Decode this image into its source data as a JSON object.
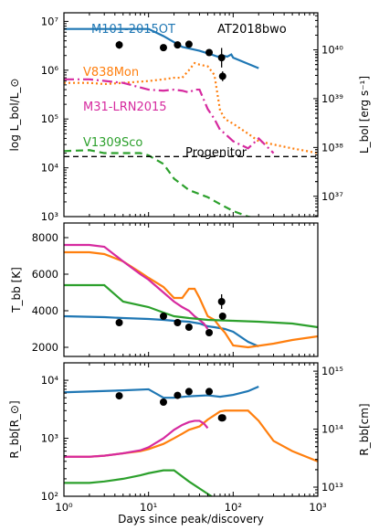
{
  "chart_data": [
    {
      "type": "line",
      "panel": "luminosity",
      "ylabel": "log L_bol/L_⊙",
      "ylabel_right": "L_bol [erg s⁻¹]",
      "xscale": "log",
      "yscale": "log",
      "xlim": [
        1,
        1000
      ],
      "ylim": [
        1000,
        15000000
      ],
      "yticks": [
        {
          "value": 1000,
          "label": "10³"
        },
        {
          "value": 10000,
          "label": "10⁴"
        },
        {
          "value": 100000,
          "label": "10⁵"
        },
        {
          "value": 1000000,
          "label": "10⁶"
        },
        {
          "value": 10000000,
          "label": "10⁷"
        }
      ],
      "yticks_right": [
        {
          "value": 2610,
          "label": "10³⁷"
        },
        {
          "value": 26100,
          "label": "10³⁸"
        },
        {
          "value": 261000,
          "label": "10³⁹"
        },
        {
          "value": 2610000,
          "label": "10⁴⁰"
        }
      ],
      "series": [
        {
          "name": "M101-2015OT",
          "color": "#1f77b4",
          "style": "solid",
          "x": [
            1,
            6,
            10,
            15,
            25,
            40,
            55,
            65,
            75,
            85,
            95,
            100,
            200
          ],
          "y": [
            7000000,
            7000000,
            7000000,
            5000000,
            3000000,
            2500000,
            2100000,
            1900000,
            2000000,
            1900000,
            2100000,
            1800000,
            1100000
          ]
        },
        {
          "name": "V838Mon",
          "color": "#ff7f0e",
          "style": "dotted",
          "x": [
            1,
            2,
            3,
            5,
            10,
            15,
            20,
            25,
            30,
            35,
            40,
            50,
            60,
            70,
            80,
            100,
            150,
            200,
            300,
            500,
            1000
          ],
          "y": [
            550000,
            550000,
            520000,
            550000,
            600000,
            650000,
            700000,
            700000,
            1000000,
            1400000,
            1300000,
            1200000,
            800000,
            150000,
            100000,
            80000,
            50000,
            35000,
            30000,
            25000,
            20000
          ]
        },
        {
          "name": "M31-LRN2015",
          "color": "#d62a9f",
          "style": "dashdot",
          "x": [
            1,
            2,
            5,
            10,
            15,
            20,
            25,
            30,
            35,
            40,
            50,
            60,
            70,
            80,
            100,
            150,
            200,
            300
          ],
          "y": [
            650000,
            650000,
            550000,
            400000,
            380000,
            400000,
            380000,
            350000,
            400000,
            400000,
            160000,
            100000,
            60000,
            50000,
            35000,
            25000,
            40000,
            20000
          ]
        },
        {
          "name": "V1309Sco",
          "color": "#2ca02c",
          "style": "dashed",
          "x": [
            1,
            2,
            3,
            5,
            8,
            10,
            15,
            20,
            30,
            50,
            70,
            100,
            150,
            200,
            300
          ],
          "y": [
            22000,
            23000,
            20000,
            20000,
            20000,
            18000,
            12000,
            6000,
            3500,
            2500,
            1800,
            1300,
            1000,
            900,
            700
          ]
        },
        {
          "name": "AT2018bwo",
          "color": "#000000",
          "style": "points",
          "x": [
            4.5,
            15,
            22,
            30,
            52,
            73,
            75
          ],
          "y": [
            3300000,
            2900000,
            3300000,
            3400000,
            2300000,
            1800000,
            750000
          ],
          "err": [
            0.08,
            0.04,
            0.04,
            0.04,
            0.04,
            0.2,
            0.1
          ]
        },
        {
          "name": "Progenitor",
          "color": "#000000",
          "style": "dashed-black",
          "x": [
            1,
            1000
          ],
          "y": [
            17000,
            17000
          ]
        }
      ],
      "labels": [
        {
          "text": "M101-2015OT",
          "color": "#1f77b4"
        },
        {
          "text": "AT2018bwo",
          "color": "#000000"
        },
        {
          "text": "V838Mon",
          "color": "#ff7f0e"
        },
        {
          "text": "M31-LRN2015",
          "color": "#d62a9f"
        },
        {
          "text": "V1309Sco",
          "color": "#2ca02c"
        },
        {
          "text": "Progenitor",
          "color": "#000000"
        }
      ]
    },
    {
      "type": "line",
      "panel": "temperature",
      "ylabel": "T_bb [K]",
      "xscale": "log",
      "yscale": "linear",
      "xlim": [
        1,
        1000
      ],
      "ylim": [
        1500,
        8800
      ],
      "yticks": [
        {
          "value": 2000,
          "label": "2000"
        },
        {
          "value": 4000,
          "label": "4000"
        },
        {
          "value": 6000,
          "label": "6000"
        },
        {
          "value": 8000,
          "label": "8000"
        }
      ],
      "series": [
        {
          "name": "M101-2015OT",
          "color": "#1f77b4",
          "x": [
            1,
            3,
            5,
            10,
            15,
            20,
            30,
            40,
            50,
            60,
            80,
            100,
            150,
            200
          ],
          "y": [
            3700,
            3650,
            3600,
            3550,
            3500,
            3450,
            3400,
            3300,
            3150,
            3100,
            3000,
            2850,
            2300,
            2050
          ]
        },
        {
          "name": "V838Mon",
          "color": "#ff7f0e",
          "x": [
            1,
            2,
            3,
            5,
            8,
            10,
            15,
            20,
            25,
            30,
            35,
            40,
            50,
            60,
            70,
            80,
            100,
            150,
            300,
            500,
            1000
          ],
          "y": [
            7200,
            7200,
            7100,
            6700,
            6100,
            5800,
            5300,
            4700,
            4700,
            5200,
            5200,
            4700,
            3700,
            3500,
            3100,
            2800,
            2100,
            2000,
            2200,
            2400,
            2600
          ]
        },
        {
          "name": "M31-LRN2015",
          "color": "#d62a9f",
          "x": [
            1,
            2,
            3,
            5,
            8,
            10,
            15,
            20,
            25,
            30,
            35,
            40,
            45,
            50
          ],
          "y": [
            7600,
            7600,
            7500,
            6700,
            6000,
            5700,
            5000,
            4500,
            4200,
            4000,
            3700,
            3500,
            3300,
            3000
          ]
        },
        {
          "name": "V1309Sco",
          "color": "#2ca02c",
          "x": [
            1,
            2,
            3,
            5,
            10,
            15,
            20,
            30,
            50,
            100,
            200,
            500,
            1000
          ],
          "y": [
            5400,
            5400,
            5400,
            4500,
            4200,
            3900,
            3700,
            3600,
            3500,
            3450,
            3400,
            3300,
            3100
          ]
        },
        {
          "name": "AT2018bwo",
          "color": "#000000",
          "x": [
            4.5,
            15,
            22,
            30,
            52,
            73,
            75
          ],
          "y": [
            3350,
            3700,
            3350,
            3100,
            2800,
            4500,
            3700
          ],
          "err": [
            0,
            0,
            0,
            0,
            0,
            400,
            0
          ]
        }
      ]
    },
    {
      "type": "line",
      "panel": "radius",
      "ylabel": "R_bb[R_⊙]",
      "ylabel_right": "R_bb[cm]",
      "xlabel": "Days since peak/discovery",
      "xscale": "log",
      "yscale": "log",
      "xlim": [
        1,
        1000
      ],
      "ylim": [
        100,
        20000
      ],
      "xticks": [
        {
          "value": 1,
          "label": "10⁰"
        },
        {
          "value": 10,
          "label": "10¹"
        },
        {
          "value": 100,
          "label": "10²"
        },
        {
          "value": 1000,
          "label": "10³"
        }
      ],
      "yticks": [
        {
          "value": 100,
          "label": "10²"
        },
        {
          "value": 1000,
          "label": "10³"
        },
        {
          "value": 10000,
          "label": "10⁴"
        }
      ],
      "yticks_right": [
        {
          "value": 143.7,
          "label": "10¹³"
        },
        {
          "value": 1437,
          "label": "10¹⁴"
        },
        {
          "value": 14370,
          "label": "10¹⁵"
        }
      ],
      "series": [
        {
          "name": "M101-2015OT",
          "color": "#1f77b4",
          "x": [
            1,
            5,
            10,
            15,
            20,
            30,
            50,
            70,
            100,
            150,
            200
          ],
          "y": [
            6200,
            6700,
            7000,
            5000,
            5000,
            5300,
            5500,
            5200,
            5600,
            6500,
            7800
          ]
        },
        {
          "name": "V838Mon",
          "color": "#ff7f0e",
          "x": [
            1,
            2,
            3,
            5,
            8,
            10,
            15,
            20,
            25,
            30,
            40,
            50,
            60,
            70,
            80,
            100,
            150,
            200,
            300,
            500,
            1000
          ],
          "y": [
            480,
            480,
            500,
            550,
            600,
            650,
            800,
            1000,
            1200,
            1400,
            1600,
            2100,
            2500,
            2900,
            3000,
            3000,
            3000,
            2000,
            900,
            600,
            400
          ]
        },
        {
          "name": "M31-LRN2015",
          "color": "#d62a9f",
          "x": [
            1,
            2,
            3,
            5,
            8,
            10,
            15,
            20,
            25,
            30,
            35,
            40,
            45,
            50
          ],
          "y": [
            480,
            480,
            500,
            550,
            620,
            700,
            1000,
            1400,
            1700,
            1900,
            2000,
            2000,
            1800,
            1500
          ]
        },
        {
          "name": "V1309Sco",
          "color": "#2ca02c",
          "x": [
            1,
            2,
            3,
            5,
            8,
            10,
            15,
            20,
            30,
            50,
            70,
            100,
            150,
            200,
            300
          ],
          "y": [
            170,
            170,
            180,
            200,
            230,
            250,
            280,
            280,
            180,
            110,
            80,
            70,
            65,
            60,
            55
          ]
        },
        {
          "name": "AT2018bwo",
          "color": "#000000",
          "x": [
            4.5,
            15,
            22,
            30,
            52,
            73,
            75
          ],
          "y": [
            5400,
            4200,
            5500,
            6400,
            6400,
            2250,
            2250
          ]
        }
      ]
    }
  ]
}
